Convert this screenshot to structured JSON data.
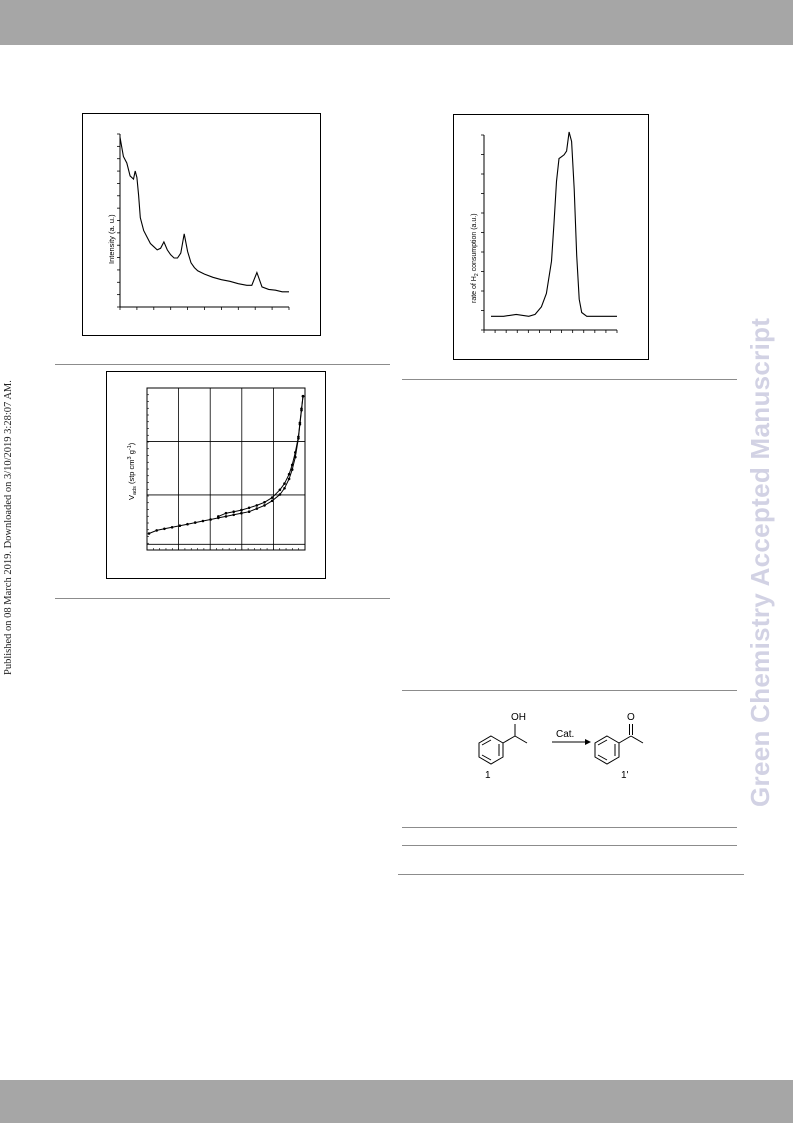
{
  "side_note": "Published on 08 March 2019. Downloaded on 3/10/2019 3:28:07 AM.",
  "watermark": "Green Chemistry Accepted Manuscript",
  "xrd": {
    "chart_data": {
      "type": "line",
      "ylabel": "Intensity (a. u.)",
      "xlabel": "",
      "x": [
        0,
        0.02,
        0.04,
        0.06,
        0.08,
        0.09,
        0.1,
        0.11,
        0.12,
        0.14,
        0.16,
        0.18,
        0.2,
        0.22,
        0.24,
        0.26,
        0.28,
        0.3,
        0.32,
        0.34,
        0.36,
        0.38,
        0.4,
        0.42,
        0.44,
        0.46,
        0.5,
        0.55,
        0.6,
        0.65,
        0.7,
        0.75,
        0.78,
        0.81,
        0.84,
        0.88,
        0.92,
        0.96,
        1.0
      ],
      "y": [
        0.98,
        0.86,
        0.82,
        0.74,
        0.72,
        0.77,
        0.73,
        0.62,
        0.48,
        0.4,
        0.36,
        0.32,
        0.3,
        0.28,
        0.29,
        0.33,
        0.28,
        0.25,
        0.23,
        0.23,
        0.26,
        0.38,
        0.27,
        0.2,
        0.17,
        0.15,
        0.13,
        0.11,
        0.095,
        0.085,
        0.07,
        0.06,
        0.06,
        0.14,
        0.05,
        0.035,
        0.03,
        0.02,
        0.02
      ]
    }
  },
  "tpr": {
    "chart_data": {
      "type": "line",
      "ylabel": "rate of H2 consumption (a.u.)",
      "ylabel_main": "rate of H",
      "ylabel_sub": "2",
      "ylabel_rest": " consumption (a.u.)",
      "xlabel": "",
      "x": [
        0,
        0.1,
        0.2,
        0.3,
        0.35,
        0.4,
        0.44,
        0.48,
        0.5,
        0.52,
        0.54,
        0.56,
        0.58,
        0.6,
        0.62,
        0.64,
        0.66,
        0.68,
        0.7,
        0.72,
        0.76,
        0.8,
        0.9,
        1.0
      ],
      "y": [
        0.03,
        0.03,
        0.04,
        0.03,
        0.04,
        0.08,
        0.15,
        0.32,
        0.52,
        0.74,
        0.86,
        0.87,
        0.88,
        0.9,
        1.0,
        0.95,
        0.7,
        0.35,
        0.12,
        0.05,
        0.03,
        0.03,
        0.03,
        0.03
      ]
    }
  },
  "bet": {
    "chart_data": {
      "type": "line",
      "ylabel_main": "V",
      "ylabel_sub": "ads",
      "ylabel_rest": " (stp cm",
      "ylabel_sup1": "3",
      "ylabel_mid": " g",
      "ylabel_sup2": "-1",
      "ylabel_end": ")",
      "xlabel": "",
      "series": [
        {
          "name": "",
          "x": [
            0.0,
            0.05,
            0.1,
            0.15,
            0.2,
            0.25,
            0.3,
            0.35,
            0.4,
            0.45,
            0.5,
            0.55,
            0.6,
            0.65,
            0.7,
            0.75,
            0.8,
            0.85,
            0.88,
            0.91,
            0.93,
            0.95,
            0.97,
            0.98,
            0.99,
            1.0
          ],
          "y": [
            0.08,
            0.1,
            0.11,
            0.12,
            0.13,
            0.14,
            0.15,
            0.16,
            0.17,
            0.18,
            0.19,
            0.2,
            0.21,
            0.22,
            0.24,
            0.26,
            0.29,
            0.33,
            0.37,
            0.43,
            0.49,
            0.57,
            0.69,
            0.78,
            0.87,
            0.96
          ]
        },
        {
          "name": "",
          "x": [
            0.45,
            0.5,
            0.55,
            0.6,
            0.65,
            0.7,
            0.75,
            0.8,
            0.85,
            0.88,
            0.91,
            0.93,
            0.95,
            0.97,
            0.98,
            0.99,
            1.0
          ],
          "y": [
            0.19,
            0.21,
            0.22,
            0.23,
            0.245,
            0.26,
            0.28,
            0.31,
            0.36,
            0.4,
            0.46,
            0.52,
            0.6,
            0.7,
            0.79,
            0.88,
            0.96
          ]
        }
      ]
    }
  },
  "scheme": {
    "oh_label": "OH",
    "o_label": "O",
    "arrow_label": "Cat.",
    "reactant_label": "1",
    "product_label": "1'"
  }
}
